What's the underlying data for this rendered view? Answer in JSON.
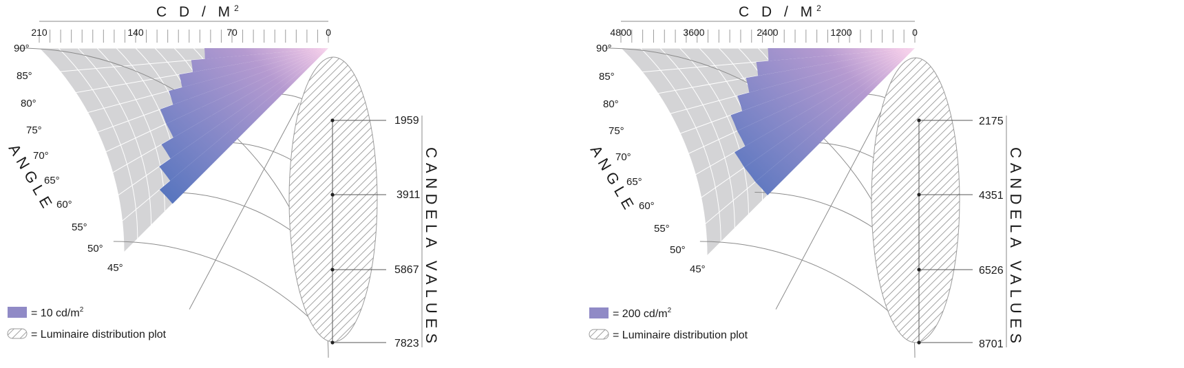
{
  "colors": {
    "grid_fill": "#d4d4d6",
    "grid_line": "#ffffff",
    "line": "#8a8a8a",
    "hatch": "#7a7a7a",
    "legend_swatch": "#908ac6",
    "gradient": [
      "#2e63b5",
      "#7a84c6",
      "#b59ad0",
      "#f0c8e6"
    ]
  },
  "chart_data": [
    {
      "type": "polar-bar",
      "axis_title": "C D / M",
      "axis_title_sup": "2",
      "ticks_labeled": [
        "210",
        "140",
        "70",
        "0"
      ],
      "tick_values": [
        210,
        140,
        70,
        0
      ],
      "xlim": [
        210,
        0
      ],
      "angle_title": "ANGLE",
      "angle_labels": [
        "90°",
        "85°",
        "80°",
        "75°",
        "70°",
        "65°",
        "60°",
        "55°",
        "50°",
        "45°"
      ],
      "values_title": "CANDELA VALUES",
      "candela_values": [
        "1959",
        "3911",
        "5867",
        "7823"
      ],
      "legend_unit": "= 10 cd/m",
      "legend_unit_sup": "2",
      "legend_plot": "= Luminaire distribution plot",
      "series": [
        {
          "angle": 47.5,
          "value": 160
        },
        {
          "angle": 52.5,
          "value": 150
        },
        {
          "angle": 57.5,
          "value": 140
        },
        {
          "angle": 62.5,
          "value": 130
        },
        {
          "angle": 67.5,
          "value": 130
        },
        {
          "angle": 72.5,
          "value": 120
        },
        {
          "angle": 77.5,
          "value": 110
        },
        {
          "angle": 82.5,
          "value": 100
        },
        {
          "angle": 87.5,
          "value": 90
        }
      ]
    },
    {
      "type": "polar-bar",
      "axis_title": "C D / M",
      "axis_title_sup": "2",
      "ticks_labeled": [
        "4800",
        "3600",
        "2400",
        "1200",
        "0"
      ],
      "tick_values": [
        4800,
        3600,
        2400,
        1200,
        0
      ],
      "xlim": [
        4800,
        0
      ],
      "angle_title": "ANGLE",
      "angle_labels": [
        "90°",
        "85°",
        "80°",
        "75°",
        "70°",
        "65°",
        "60°",
        "55°",
        "50°",
        "45°"
      ],
      "values_title": "CANDELA VALUES",
      "candela_values": [
        "2175",
        "4351",
        "6526",
        "8701"
      ],
      "legend_unit": "= 200 cd/m",
      "legend_unit_sup": "2",
      "legend_plot": "= Luminaire distribution plot",
      "series": [
        {
          "angle": 47.5,
          "value": 3400
        },
        {
          "angle": 52.5,
          "value": 3400
        },
        {
          "angle": 57.5,
          "value": 3400
        },
        {
          "angle": 62.5,
          "value": 3200
        },
        {
          "angle": 67.5,
          "value": 3200
        },
        {
          "angle": 72.5,
          "value": 3000
        },
        {
          "angle": 77.5,
          "value": 2800
        },
        {
          "angle": 82.5,
          "value": 2600
        },
        {
          "angle": 87.5,
          "value": 2400
        }
      ]
    }
  ]
}
